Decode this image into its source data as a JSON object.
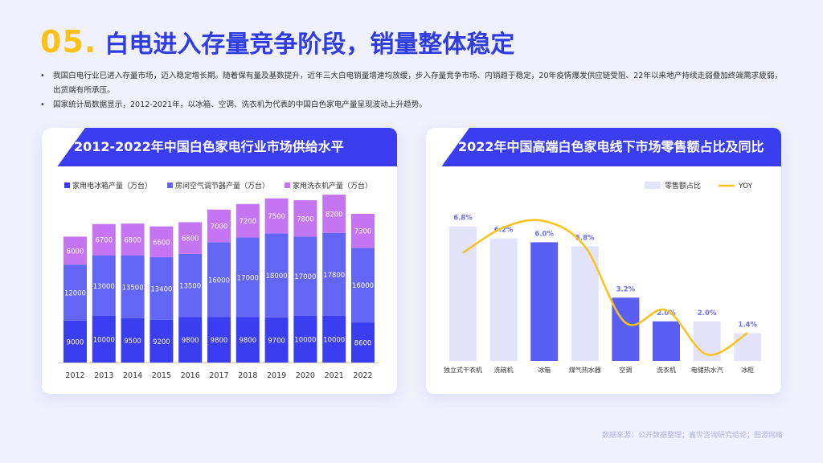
{
  "header": {
    "number": "05.",
    "title": "白电进入存量竞争阶段，销量整体稳定"
  },
  "bullets": [
    "我国白电行业已进入存量市场，迈入稳定增长期。随着保有量及基数提升，近年三大白电销量增速均放缓，步入存量竞争市场、内销趋于稳定，20年疫情爆发供应链受阻、22年以来地产持续走弱叠加终端需求疲弱，出货端有所承压。",
    "国家统计局数据显示，2012-2021年，以冰箱、空调、洗衣机为代表的中国白色家电产量呈现波动上升趋势。"
  ],
  "source": "数据来源：公开数据整理；嘉世咨询研究结论；图源网络",
  "chart_data": [
    {
      "type": "bar",
      "stacked": true,
      "title": "2012-2022年中国白色家电行业市场供给水平",
      "categories": [
        "2012",
        "2013",
        "2014",
        "2015",
        "2016",
        "2017",
        "2018",
        "2019",
        "2020",
        "2021",
        "2022"
      ],
      "series": [
        {
          "name": "家用电冰箱产量（万台）",
          "color": "#3a3df0",
          "values": [
            9000,
            10000,
            9500,
            9200,
            9800,
            9800,
            9800,
            9700,
            10000,
            10000,
            8600
          ]
        },
        {
          "name": "房间空气调节器产量（万台）",
          "color": "#6366f4",
          "values": [
            12000,
            13000,
            13500,
            13400,
            13500,
            16000,
            17000,
            18000,
            17000,
            17800,
            16000
          ]
        },
        {
          "name": "家用洗衣机产量（万台）",
          "color": "#c574f2",
          "values": [
            6000,
            6700,
            6800,
            6600,
            6800,
            7000,
            7200,
            7500,
            7800,
            8200,
            7300
          ]
        }
      ],
      "legend": "top"
    },
    {
      "type": "bar",
      "title": "2022年中国高端白色家电线下市场零售额占比及同比",
      "categories": [
        "独立式干衣机",
        "洗碗机",
        "冰箱",
        "煤气热水器",
        "空调",
        "洗衣机",
        "电储热水汽",
        "冰柜"
      ],
      "series": [
        {
          "name": "零售额占比",
          "type": "bar",
          "values": [
            6.8,
            6.2,
            6.0,
            5.8,
            3.2,
            2.0,
            2.0,
            1.4
          ],
          "labels": [
            "6.8%",
            "6.2%",
            "6.0%",
            "5.8%",
            "3.2%",
            "2.0%",
            "2.0%",
            "1.4%"
          ],
          "highlight": [
            false,
            false,
            true,
            false,
            true,
            true,
            false,
            false
          ]
        },
        {
          "name": "YOY",
          "type": "line",
          "smooth": true,
          "color": "#fbc31a",
          "values": [
            0.75,
            0.95,
            1.0,
            0.8,
            0.2,
            0.3,
            -0.05,
            0.12
          ]
        }
      ],
      "colors": {
        "bar": "#e3e4fb",
        "bar_highlight": "#5b5ef2",
        "label": "#6b6ff2"
      },
      "legend": "top-right"
    }
  ]
}
